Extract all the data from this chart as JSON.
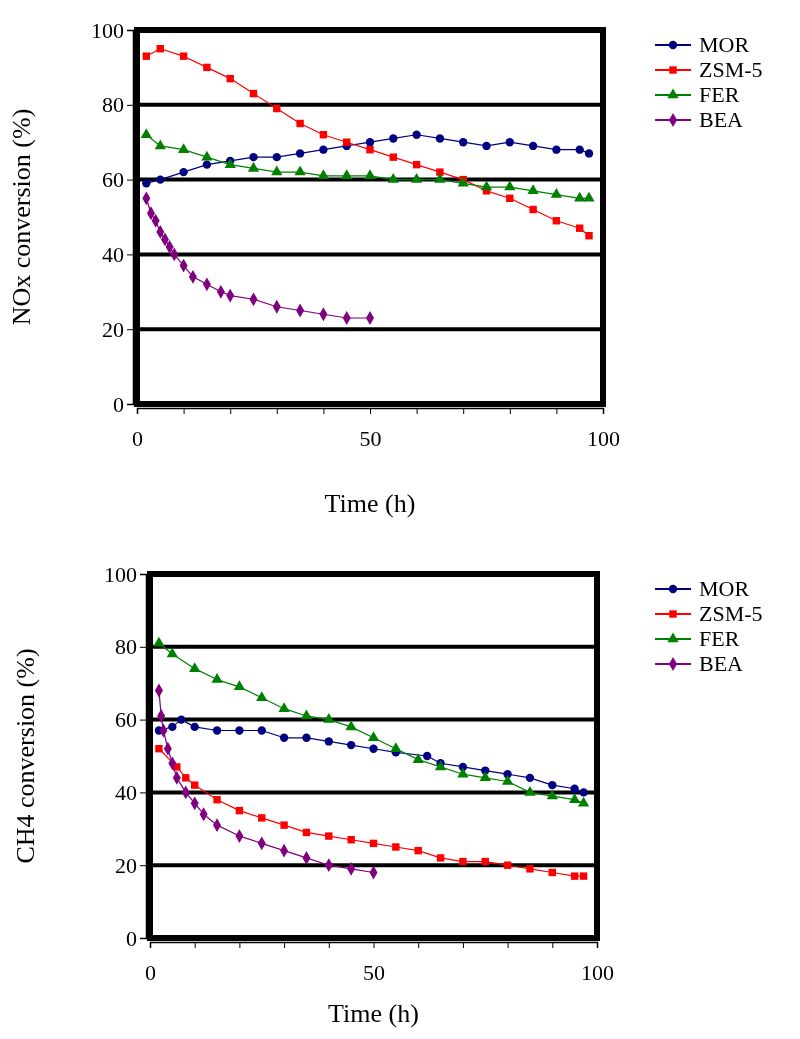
{
  "chart_data": [
    {
      "type": "line",
      "xlabel": "Time (h)",
      "ylabel": "NOx conversion (%)",
      "xlim": [
        0,
        100
      ],
      "ylim": [
        0,
        100
      ],
      "xticks": [
        0,
        {
          "value": 10,
          "label": null
        },
        {
          "value": 20,
          "label": null
        },
        {
          "value": 30,
          "label": null
        },
        {
          "value": 40,
          "label": null
        },
        50,
        {
          "value": 60,
          "label": null
        },
        {
          "value": 70,
          "label": null
        },
        {
          "value": 80,
          "label": null
        },
        {
          "value": 90,
          "label": null
        },
        100
      ],
      "yticks": [
        0,
        20,
        40,
        60,
        80,
        100
      ],
      "grid": "y",
      "legend": "right",
      "line_style": "solid",
      "series": [
        {
          "name": "MOR",
          "color": "#000080",
          "marker": "circle",
          "x": [
            2,
            5,
            10,
            15,
            20,
            25,
            30,
            35,
            40,
            45,
            50,
            55,
            60,
            65,
            70,
            75,
            80,
            85,
            90,
            95,
            97
          ],
          "values": [
            59,
            60,
            62,
            64,
            65,
            66,
            66,
            67,
            68,
            69,
            70,
            71,
            72,
            71,
            70,
            69,
            70,
            69,
            68,
            68,
            67
          ]
        },
        {
          "name": "ZSM-5",
          "color": "#ff0000",
          "marker": "square",
          "x": [
            2,
            5,
            10,
            15,
            20,
            25,
            30,
            35,
            40,
            45,
            50,
            55,
            60,
            65,
            70,
            75,
            80,
            85,
            90,
            95,
            97
          ],
          "values": [
            93,
            95,
            93,
            90,
            87,
            83,
            79,
            75,
            72,
            70,
            68,
            66,
            64,
            62,
            60,
            57,
            55,
            52,
            49,
            47,
            45
          ]
        },
        {
          "name": "FER",
          "color": "#008000",
          "marker": "triangle",
          "x": [
            2,
            5,
            10,
            15,
            20,
            25,
            30,
            35,
            40,
            45,
            50,
            55,
            60,
            65,
            70,
            75,
            80,
            85,
            90,
            95,
            97
          ],
          "values": [
            72,
            69,
            68,
            66,
            64,
            63,
            62,
            62,
            61,
            61,
            61,
            60,
            60,
            60,
            59,
            58,
            58,
            57,
            56,
            55,
            55
          ]
        },
        {
          "name": "BEA",
          "color": "#800080",
          "marker": "diamond",
          "x": [
            2,
            3,
            4,
            5,
            6,
            7,
            8,
            10,
            12,
            15,
            18,
            20,
            25,
            30,
            35,
            40,
            45,
            50
          ],
          "values": [
            55,
            51,
            49,
            46,
            44,
            42,
            40,
            37,
            34,
            32,
            30,
            29,
            28,
            26,
            25,
            24,
            23,
            23
          ]
        }
      ]
    },
    {
      "type": "line",
      "xlabel": "Time (h)",
      "ylabel": "CH4 conversion (%)",
      "xlim": [
        0,
        100
      ],
      "ylim": [
        0,
        100
      ],
      "xticks": [
        0,
        {
          "value": 10,
          "label": null
        },
        {
          "value": 20,
          "label": null
        },
        {
          "value": 30,
          "label": null
        },
        {
          "value": 40,
          "label": null
        },
        50,
        {
          "value": 60,
          "label": null
        },
        {
          "value": 70,
          "label": null
        },
        {
          "value": 80,
          "label": null
        },
        {
          "value": 90,
          "label": null
        },
        100
      ],
      "yticks": [
        0,
        20,
        40,
        60,
        80,
        100
      ],
      "grid": "y",
      "legend": "right",
      "line_style": "solid",
      "series": [
        {
          "name": "MOR",
          "color": "#000080",
          "marker": "circle",
          "x": [
            2,
            5,
            7,
            10,
            15,
            20,
            25,
            30,
            35,
            40,
            45,
            50,
            55,
            62,
            65,
            70,
            75,
            80,
            85,
            90,
            95,
            97
          ],
          "values": [
            57,
            58,
            60,
            58,
            57,
            57,
            57,
            55,
            55,
            54,
            53,
            52,
            51,
            50,
            48,
            47,
            46,
            45,
            44,
            42,
            41,
            40
          ]
        },
        {
          "name": "ZSM-5",
          "color": "#ff0000",
          "marker": "square",
          "x": [
            2,
            6,
            8,
            10,
            15,
            20,
            25,
            30,
            35,
            40,
            45,
            50,
            55,
            60,
            65,
            70,
            75,
            80,
            85,
            90,
            95,
            97
          ],
          "values": [
            52,
            47,
            44,
            42,
            38,
            35,
            33,
            31,
            29,
            28,
            27,
            26,
            25,
            24,
            22,
            21,
            21,
            20,
            19,
            18,
            17,
            17
          ]
        },
        {
          "name": "FER",
          "color": "#008000",
          "marker": "triangle",
          "x": [
            2,
            5,
            10,
            15,
            20,
            25,
            30,
            35,
            40,
            45,
            50,
            55,
            60,
            65,
            70,
            75,
            80,
            85,
            90,
            95,
            97
          ],
          "values": [
            81,
            78,
            74,
            71,
            69,
            66,
            63,
            61,
            60,
            58,
            55,
            52,
            49,
            47,
            45,
            44,
            43,
            40,
            39,
            38,
            37
          ]
        },
        {
          "name": "BEA",
          "color": "#800080",
          "marker": "diamond",
          "x": [
            2,
            2.5,
            3,
            4,
            5,
            6,
            8,
            10,
            12,
            15,
            20,
            25,
            30,
            35,
            40,
            45,
            50
          ],
          "values": [
            68,
            61,
            57,
            52,
            48,
            44,
            40,
            37,
            34,
            31,
            28,
            26,
            24,
            22,
            20,
            19,
            18
          ]
        }
      ]
    }
  ]
}
